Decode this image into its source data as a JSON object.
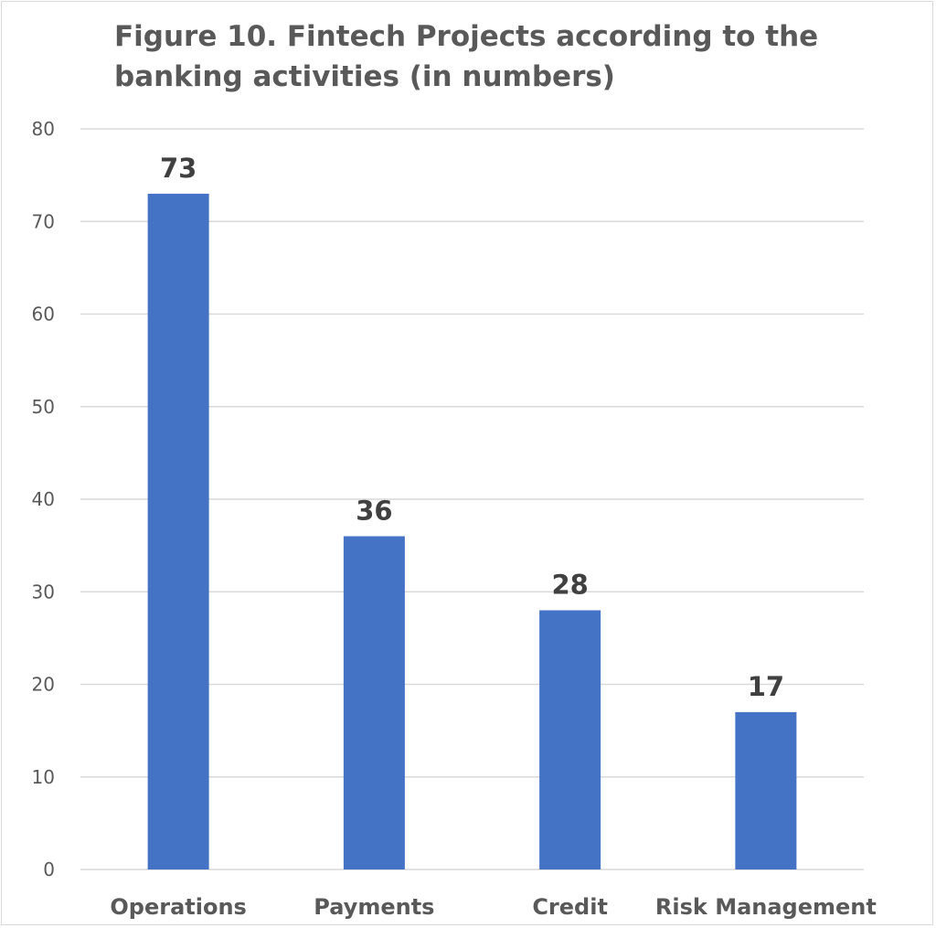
{
  "chart_data": {
    "type": "bar",
    "title": "Figure 10. Fintech Projects according to the banking activities (in numbers)",
    "categories": [
      "Operations",
      "Payments",
      "Credit",
      "Risk Management"
    ],
    "values": [
      73,
      36,
      28,
      17
    ],
    "ylim": [
      0,
      80
    ],
    "yticks": [
      0,
      10,
      20,
      30,
      40,
      50,
      60,
      70,
      80
    ],
    "xlabel": "",
    "ylabel": "",
    "grid": true,
    "legend": "none",
    "bar_color": "#4472C4",
    "gridline_color": "#d9d9d9"
  }
}
